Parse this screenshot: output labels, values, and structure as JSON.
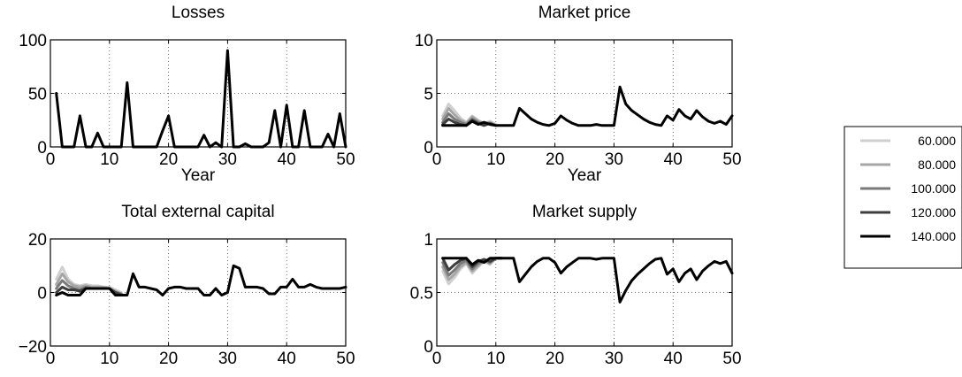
{
  "legend": {
    "placement": "right",
    "entries": [
      {
        "label": "60.000",
        "color": "#cfcfcf"
      },
      {
        "label": "80.000",
        "color": "#a6a6a6"
      },
      {
        "label": "100.000",
        "color": "#7a7a7a"
      },
      {
        "label": "120.000",
        "color": "#3e3e3e"
      },
      {
        "label": "140.000",
        "color": "#000000"
      }
    ]
  },
  "chart_data": [
    {
      "id": "losses",
      "type": "line",
      "title": "Losses",
      "xlabel": "Year",
      "ylabel": "",
      "xlim": [
        0,
        50
      ],
      "ylim": [
        0,
        100
      ],
      "xticks": [
        0,
        10,
        20,
        30,
        40,
        50
      ],
      "yticks": [
        0,
        50,
        100
      ],
      "grid": true,
      "series": [
        {
          "color": "#000000",
          "x": [
            1,
            2,
            3,
            4,
            5,
            6,
            7,
            8,
            9,
            10,
            11,
            12,
            13,
            14,
            15,
            16,
            17,
            18,
            19,
            20,
            21,
            22,
            23,
            24,
            25,
            26,
            27,
            28,
            29,
            30,
            31,
            32,
            33,
            34,
            35,
            36,
            37,
            38,
            39,
            40,
            41,
            42,
            43,
            44,
            45,
            46,
            47,
            48,
            49,
            50
          ],
          "values": [
            50,
            0,
            0,
            0,
            29,
            0,
            0,
            13,
            0,
            0,
            0,
            0,
            60,
            0,
            0,
            0,
            0,
            0,
            15,
            29,
            0,
            0,
            0,
            0,
            0,
            11,
            0,
            4,
            0,
            90,
            0,
            0,
            3,
            0,
            0,
            0,
            4,
            34,
            0,
            39,
            0,
            0,
            34,
            0,
            0,
            0,
            12,
            0,
            31,
            0
          ]
        }
      ]
    },
    {
      "id": "market-price",
      "type": "line",
      "title": "Market price",
      "xlabel": "Year",
      "ylabel": "",
      "xlim": [
        0,
        50
      ],
      "ylim": [
        0,
        10
      ],
      "xticks": [
        0,
        10,
        20,
        30,
        40,
        50
      ],
      "yticks": [
        0,
        5,
        10
      ],
      "grid": true,
      "series": [
        {
          "color": "#cfcfcf",
          "x": [
            1,
            2,
            3,
            4,
            5,
            6,
            7,
            8,
            9,
            10
          ],
          "values": [
            2.9,
            4.0,
            3.4,
            2.7,
            2.3,
            2.9,
            2.5,
            2.2,
            2.4,
            2.1
          ]
        },
        {
          "color": "#a6a6a6",
          "x": [
            1,
            2,
            3,
            4,
            5,
            6,
            7,
            8,
            9,
            10
          ],
          "values": [
            2.6,
            3.6,
            3.0,
            2.5,
            2.2,
            2.8,
            2.4,
            2.2,
            2.3,
            2.0
          ]
        },
        {
          "color": "#7a7a7a",
          "x": [
            1,
            2,
            3,
            4,
            5,
            6,
            7,
            8,
            9,
            10
          ],
          "values": [
            2.3,
            3.1,
            2.6,
            2.3,
            2.1,
            2.6,
            2.3,
            2.1,
            2.2,
            2.0
          ]
        },
        {
          "color": "#3e3e3e",
          "x": [
            1,
            2,
            3,
            4,
            5,
            6,
            7,
            8,
            9,
            10
          ],
          "values": [
            2.1,
            2.6,
            2.3,
            2.1,
            2.0,
            2.5,
            2.2,
            2.0,
            2.2,
            2.0
          ]
        },
        {
          "color": "#000000",
          "x": [
            1,
            2,
            3,
            4,
            5,
            6,
            7,
            8,
            9,
            10,
            11,
            12,
            13,
            14,
            15,
            16,
            17,
            18,
            19,
            20,
            21,
            22,
            23,
            24,
            25,
            26,
            27,
            28,
            29,
            30,
            31,
            32,
            33,
            34,
            35,
            36,
            37,
            38,
            39,
            40,
            41,
            42,
            43,
            44,
            45,
            46,
            47,
            48,
            49,
            50
          ],
          "values": [
            2.0,
            2.0,
            2.0,
            2.0,
            2.0,
            2.4,
            2.1,
            2.3,
            2.1,
            2.0,
            2.0,
            2.0,
            2.0,
            3.6,
            3.1,
            2.6,
            2.3,
            2.1,
            2.0,
            2.2,
            2.9,
            2.5,
            2.2,
            2.0,
            2.0,
            2.0,
            2.1,
            2.0,
            2.0,
            2.0,
            5.6,
            4.0,
            3.4,
            3.0,
            2.6,
            2.3,
            2.1,
            2.0,
            2.9,
            2.5,
            3.5,
            2.9,
            2.6,
            3.4,
            2.8,
            2.4,
            2.2,
            2.4,
            2.1,
            2.9
          ]
        }
      ]
    },
    {
      "id": "total-external-capital",
      "type": "line",
      "title": "Total external capital",
      "xlabel": "",
      "ylabel": "",
      "xlim": [
        0,
        50
      ],
      "ylim": [
        -20,
        20
      ],
      "xticks": [
        0,
        10,
        20,
        30,
        40,
        50
      ],
      "yticks": [
        -20,
        0,
        20
      ],
      "grid": true,
      "series": [
        {
          "color": "#cfcfcf",
          "x": [
            1,
            2,
            3,
            4,
            5,
            6,
            7,
            8,
            9,
            10,
            11,
            12
          ],
          "values": [
            5,
            9.5,
            5,
            3,
            2.5,
            3,
            2.5,
            2.5,
            2,
            2,
            1,
            0
          ]
        },
        {
          "color": "#a6a6a6",
          "x": [
            1,
            2,
            3,
            4,
            5,
            6,
            7,
            8,
            9,
            10,
            11,
            12
          ],
          "values": [
            3,
            7,
            4,
            2.5,
            2,
            2.5,
            2,
            2,
            2,
            1.5,
            0.5,
            -0.5
          ]
        },
        {
          "color": "#7a7a7a",
          "x": [
            1,
            2,
            3,
            4,
            5,
            6,
            7,
            8,
            9,
            10,
            11,
            12
          ],
          "values": [
            1.5,
            4.5,
            2.5,
            1.5,
            1,
            2,
            1.5,
            1.5,
            1.5,
            1.5,
            0,
            -0.5
          ]
        },
        {
          "color": "#3e3e3e",
          "x": [
            1,
            2,
            3,
            4,
            5,
            6,
            7,
            8,
            9,
            10,
            11,
            12
          ],
          "values": [
            0,
            2,
            1,
            1,
            0.5,
            1.5,
            1.5,
            1.5,
            1.5,
            1.5,
            0,
            -1
          ]
        },
        {
          "color": "#000000",
          "x": [
            1,
            2,
            3,
            4,
            5,
            6,
            7,
            8,
            9,
            10,
            11,
            12,
            13,
            14,
            15,
            16,
            17,
            18,
            19,
            20,
            21,
            22,
            23,
            24,
            25,
            26,
            27,
            28,
            29,
            30,
            31,
            32,
            33,
            34,
            35,
            36,
            37,
            38,
            39,
            40,
            41,
            42,
            43,
            44,
            45,
            46,
            47,
            48,
            49,
            50
          ],
          "values": [
            -1,
            0,
            -1,
            -1,
            -1,
            1.5,
            1.5,
            1.5,
            1.5,
            1.5,
            -1,
            -1,
            -1,
            7,
            2,
            2,
            1.5,
            1,
            -1,
            1.5,
            2,
            2,
            1.5,
            1.5,
            1.5,
            -1,
            -1,
            1.5,
            -1,
            0,
            10,
            9,
            2,
            2,
            2,
            1.5,
            -0.5,
            -0.5,
            2,
            2,
            5,
            2,
            2,
            3,
            2,
            1.5,
            1.5,
            1.5,
            1.5,
            2
          ]
        }
      ]
    },
    {
      "id": "market-supply",
      "type": "line",
      "title": "Market supply",
      "xlabel": "",
      "ylabel": "",
      "xlim": [
        0,
        50
      ],
      "ylim": [
        0,
        1
      ],
      "xticks": [
        0,
        10,
        20,
        30,
        40,
        50
      ],
      "yticks": [
        0,
        0.5,
        1
      ],
      "grid": true,
      "series": [
        {
          "color": "#cfcfcf",
          "x": [
            1,
            2,
            3,
            4,
            5,
            6,
            7,
            8,
            9,
            10,
            11
          ],
          "values": [
            0.7,
            0.58,
            0.64,
            0.72,
            0.77,
            0.68,
            0.74,
            0.79,
            0.76,
            0.82,
            0.82
          ]
        },
        {
          "color": "#a6a6a6",
          "x": [
            1,
            2,
            3,
            4,
            5,
            6,
            7,
            8,
            9,
            10,
            11
          ],
          "values": [
            0.74,
            0.62,
            0.67,
            0.74,
            0.78,
            0.7,
            0.75,
            0.8,
            0.77,
            0.82,
            0.82
          ]
        },
        {
          "color": "#7a7a7a",
          "x": [
            1,
            2,
            3,
            4,
            5,
            6,
            7,
            8,
            9,
            10,
            11
          ],
          "values": [
            0.78,
            0.66,
            0.71,
            0.77,
            0.8,
            0.72,
            0.77,
            0.8,
            0.78,
            0.82,
            0.82
          ]
        },
        {
          "color": "#3e3e3e",
          "x": [
            1,
            2,
            3,
            4,
            5,
            6,
            7,
            8,
            9,
            10,
            11
          ],
          "values": [
            0.82,
            0.71,
            0.76,
            0.8,
            0.82,
            0.74,
            0.79,
            0.81,
            0.79,
            0.82,
            0.82
          ]
        },
        {
          "color": "#000000",
          "x": [
            1,
            2,
            3,
            4,
            5,
            6,
            7,
            8,
            9,
            10,
            11,
            12,
            13,
            14,
            15,
            16,
            17,
            18,
            19,
            20,
            21,
            22,
            23,
            24,
            25,
            26,
            27,
            28,
            29,
            30,
            31,
            32,
            33,
            34,
            35,
            36,
            37,
            38,
            39,
            40,
            41,
            42,
            43,
            44,
            45,
            46,
            47,
            48,
            49,
            50
          ],
          "values": [
            0.82,
            0.82,
            0.82,
            0.82,
            0.82,
            0.76,
            0.8,
            0.78,
            0.82,
            0.82,
            0.82,
            0.82,
            0.82,
            0.6,
            0.67,
            0.74,
            0.79,
            0.82,
            0.82,
            0.78,
            0.68,
            0.74,
            0.78,
            0.82,
            0.82,
            0.82,
            0.81,
            0.82,
            0.82,
            0.82,
            0.41,
            0.52,
            0.61,
            0.67,
            0.72,
            0.77,
            0.81,
            0.82,
            0.67,
            0.72,
            0.6,
            0.68,
            0.72,
            0.62,
            0.7,
            0.75,
            0.79,
            0.77,
            0.79,
            0.68
          ]
        }
      ]
    }
  ]
}
